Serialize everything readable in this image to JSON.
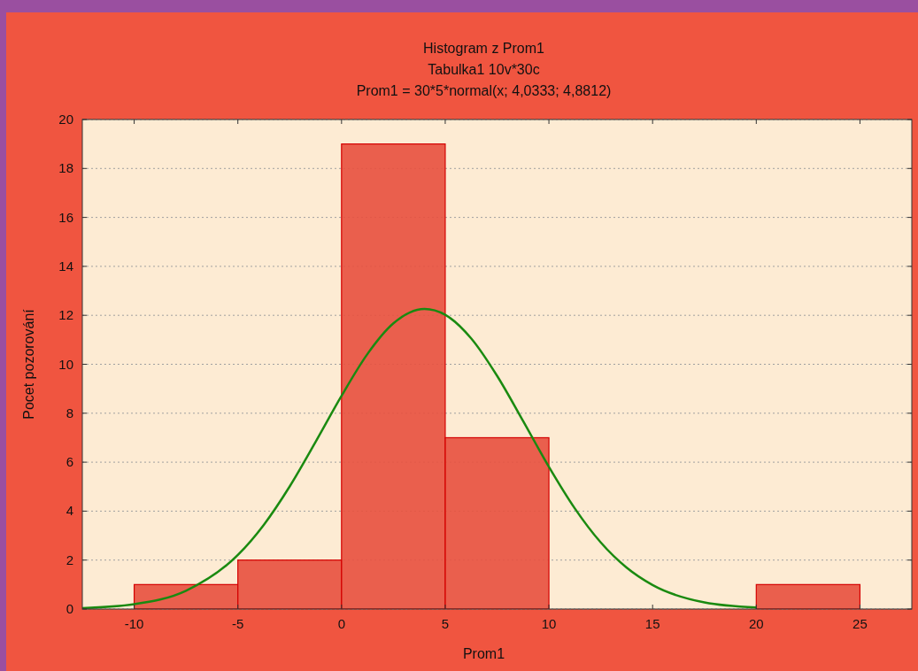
{
  "chart_data": {
    "type": "histogram",
    "title": "Histogram z Prom1",
    "subtitle": "Tabulka1 10v*30c",
    "annotations": [
      "Prom1 = 30*5*normal(x; 4,0333; 4,8812)"
    ],
    "xlabel": "Prom1",
    "ylabel": "Pocet pozorování",
    "bins": [
      -10,
      -5,
      0,
      5,
      10,
      15,
      20,
      25
    ],
    "values": [
      1,
      2,
      19,
      7,
      0,
      0,
      1
    ],
    "color": "#e8503e",
    "series": [
      {
        "type": "line",
        "color": "#1a8a10",
        "x": [
          -12.5,
          -10,
          -7.5,
          -5,
          -3.75,
          -2.5,
          -1.25,
          0,
          1.25,
          2.5,
          4,
          5,
          6.25,
          7.5,
          8.75,
          10,
          11.25,
          12.5,
          13.75,
          15,
          17.5,
          20
        ],
        "values": [
          0.04,
          0.2,
          0.75,
          2.21,
          3.44,
          5.01,
          6.83,
          8.71,
          10.42,
          11.67,
          12.26,
          12.02,
          11.06,
          9.53,
          7.69,
          5.81,
          4.11,
          2.72,
          1.69,
          0.98,
          0.27,
          0.06
        ]
      }
    ],
    "xlim": [
      -12.5,
      27.5
    ],
    "xticks": [
      -10,
      -5,
      0,
      5,
      10,
      15,
      20,
      25
    ],
    "ylim": [
      0,
      20
    ],
    "yticks": [
      0,
      2,
      4,
      6,
      8,
      10,
      12,
      14,
      16,
      18,
      20
    ],
    "grid": "y"
  }
}
